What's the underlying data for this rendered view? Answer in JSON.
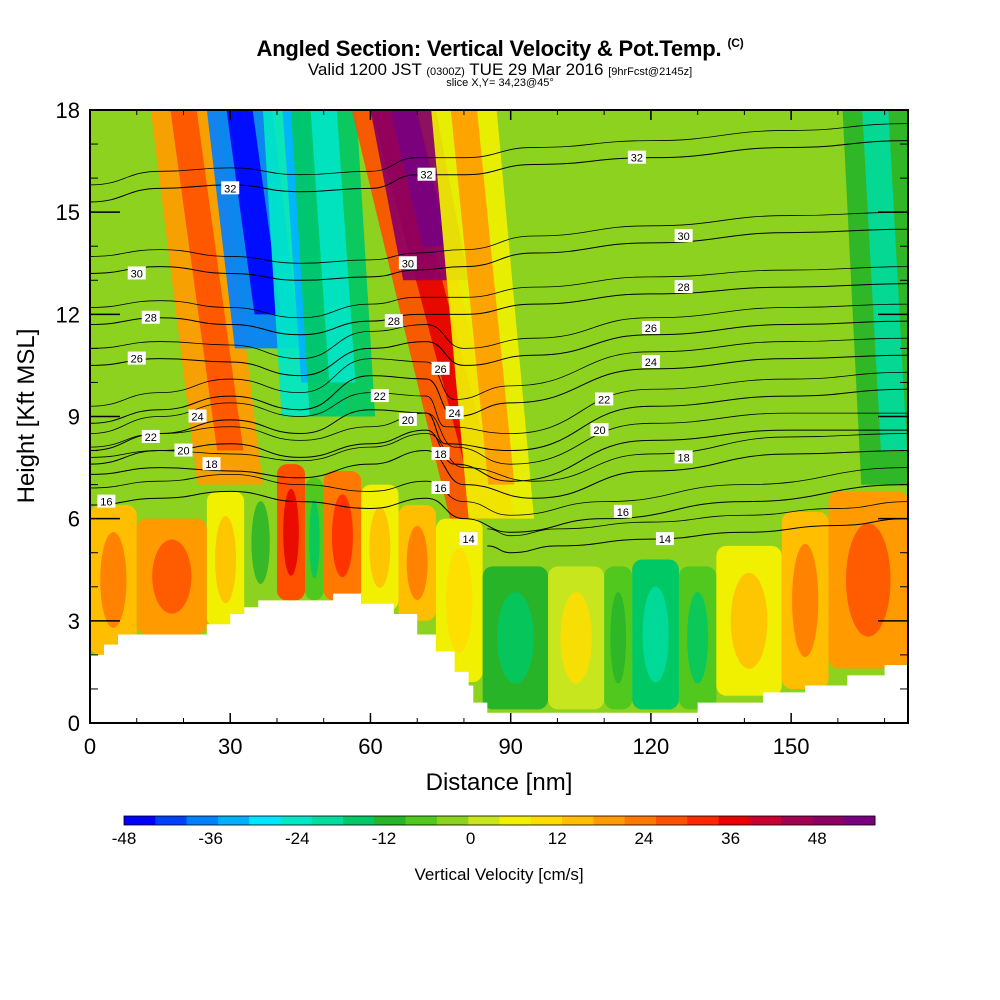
{
  "header": {
    "title": "Angled Section: Vertical Velocity & Pot.Temp.",
    "title_unit": "(C)",
    "valid_prefix": "Valid 1200 JST",
    "valid_zulu": "(0300Z)",
    "valid_date": "TUE 29 Mar 2016",
    "forecast_tag": "[9hrFcst@2145z]",
    "slice_info": "slice X,Y= 34,23@45°"
  },
  "chart_data": {
    "type": "heatmap",
    "xlabel": "Distance [nm]",
    "ylabel": "Height [Kft MSL]",
    "xlim": [
      0,
      175
    ],
    "ylim": [
      0,
      18
    ],
    "x_ticks": [
      0,
      30,
      60,
      90,
      120,
      150
    ],
    "y_ticks": [
      0,
      3,
      6,
      9,
      12,
      15,
      18
    ],
    "grid": false,
    "colorbar": {
      "label": "Vertical Velocity [cm/s]",
      "tick_labels": [
        -48,
        -36,
        -24,
        -12,
        0,
        12,
        24,
        36,
        48
      ],
      "colors": [
        "#0000ff",
        "#0040ff",
        "#0080ff",
        "#00b0ff",
        "#00e6ff",
        "#00e6c8",
        "#00dca0",
        "#00c864",
        "#28b428",
        "#50c81e",
        "#8cd21e",
        "#c8e61e",
        "#f0f000",
        "#ffdc00",
        "#ffbe00",
        "#ff9b00",
        "#ff7800",
        "#ff5000",
        "#ff2800",
        "#e60000",
        "#c80032",
        "#a00050",
        "#8c0064",
        "#780080"
      ]
    },
    "velocity_cells": [
      {
        "x": [
          0,
          10
        ],
        "y": [
          2,
          6.4
        ],
        "v": 14
      },
      {
        "x": [
          10,
          25
        ],
        "y": [
          2.6,
          6
        ],
        "v": 18
      },
      {
        "x": [
          25,
          33
        ],
        "y": [
          2.8,
          6.8
        ],
        "v": 6
      },
      {
        "x": [
          33,
          40
        ],
        "y": [
          3.4,
          7.2
        ],
        "v": -4
      },
      {
        "x": [
          40,
          46
        ],
        "y": [
          3.6,
          7.6
        ],
        "v": 28
      },
      {
        "x": [
          46,
          50
        ],
        "y": [
          3.6,
          7.2
        ],
        "v": -8
      },
      {
        "x": [
          50,
          58
        ],
        "y": [
          3.6,
          7.4
        ],
        "v": 24
      },
      {
        "x": [
          58,
          66
        ],
        "y": [
          3.3,
          7
        ],
        "v": 8
      },
      {
        "x": [
          66,
          74
        ],
        "y": [
          3.0,
          6.4
        ],
        "v": 14
      },
      {
        "x": [
          74,
          84
        ],
        "y": [
          1.2,
          6
        ],
        "v": 4
      },
      {
        "x": [
          84,
          98
        ],
        "y": [
          0.4,
          4.6
        ],
        "v": -10
      },
      {
        "x": [
          98,
          110
        ],
        "y": [
          0.4,
          4.6
        ],
        "v": 2
      },
      {
        "x": [
          110,
          116
        ],
        "y": [
          0.4,
          4.6
        ],
        "v": -6
      },
      {
        "x": [
          116,
          126
        ],
        "y": [
          0.4,
          4.8
        ],
        "v": -16
      },
      {
        "x": [
          126,
          134
        ],
        "y": [
          0.4,
          4.6
        ],
        "v": -8
      },
      {
        "x": [
          134,
          148
        ],
        "y": [
          0.8,
          5.2
        ],
        "v": 8
      },
      {
        "x": [
          148,
          158
        ],
        "y": [
          1.0,
          6.2
        ],
        "v": 14
      },
      {
        "x": [
          158,
          175
        ],
        "y": [
          1.6,
          6.8
        ],
        "v": 18
      }
    ],
    "velocity_bands": [
      {
        "x_bottom": 30,
        "x_top": 20,
        "y_bottom": 7,
        "y_top": 18,
        "v": 18
      },
      {
        "x_bottom": 38,
        "x_top": 32,
        "y_bottom": 11,
        "y_top": 18,
        "v": -38
      },
      {
        "x_bottom": 48,
        "x_top": 44,
        "y_bottom": 9,
        "y_top": 18,
        "v": -26
      },
      {
        "x_bottom": 54,
        "x_top": 50,
        "y_bottom": 9,
        "y_top": 18,
        "v": -16
      },
      {
        "x_bottom": 84,
        "x_top": 63,
        "y_bottom": 6,
        "y_top": 18,
        "v": 28
      },
      {
        "x_bottom": 74,
        "x_top": 67,
        "y_bottom": 13,
        "y_top": 18,
        "v": 48
      },
      {
        "x_bottom": 88,
        "x_top": 80,
        "y_bottom": 6,
        "y_top": 18,
        "v": 8
      },
      {
        "x_bottom": 172,
        "x_top": 168,
        "y_bottom": 7,
        "y_top": 18,
        "v": -10
      }
    ],
    "terrain_profile": {
      "x": [
        0,
        3,
        3,
        6,
        6,
        25,
        25,
        30,
        30,
        33,
        33,
        36,
        36,
        52,
        52,
        58,
        58,
        65,
        65,
        70,
        70,
        74,
        74,
        78,
        78,
        81,
        81,
        82,
        82,
        85,
        85,
        130,
        130,
        144,
        144,
        153,
        153,
        162,
        162,
        170,
        170,
        175
      ],
      "y": [
        2.0,
        2.0,
        2.3,
        2.3,
        2.6,
        2.6,
        2.9,
        2.9,
        3.2,
        3.2,
        3.4,
        3.4,
        3.6,
        3.6,
        3.8,
        3.8,
        3.5,
        3.5,
        3.2,
        3.2,
        2.6,
        2.6,
        2.1,
        2.1,
        1.5,
        1.5,
        1.1,
        1.1,
        0.6,
        0.6,
        0.3,
        0.3,
        0.6,
        0.6,
        0.9,
        0.9,
        1.1,
        1.1,
        1.4,
        1.4,
        1.7,
        1.7
      ]
    },
    "pot_temp_contours": [
      {
        "value": 14,
        "x": [
          85,
          90,
          100,
          120,
          140,
          160,
          175
        ],
        "y": [
          5.2,
          5.0,
          5.2,
          5.4,
          5.6,
          5.8,
          6.0
        ],
        "label_at": [
          81,
          5.4
        ]
      },
      {
        "value": 16,
        "x": [
          0,
          15,
          30,
          45,
          60,
          72,
          80,
          90,
          110,
          140,
          175
        ],
        "y": [
          6.4,
          6.6,
          6.8,
          6.5,
          6.3,
          6.6,
          6.0,
          5.6,
          6.0,
          6.5,
          7.0
        ],
        "label_at": [
          75,
          6.9
        ]
      },
      {
        "value": 18,
        "x": [
          0,
          15,
          30,
          45,
          60,
          72,
          80,
          95,
          120,
          150,
          175
        ],
        "y": [
          7.3,
          7.5,
          7.4,
          7.2,
          7.6,
          8.0,
          7.0,
          6.6,
          7.4,
          7.9,
          8.0
        ],
        "label_at": [
          26,
          7.6
        ]
      },
      {
        "value": 20,
        "x": [
          0,
          15,
          30,
          45,
          60,
          72,
          78,
          90,
          120,
          150,
          175
        ],
        "y": [
          7.6,
          8.0,
          8.2,
          7.8,
          8.2,
          8.6,
          7.6,
          7.1,
          8.3,
          8.6,
          8.6
        ],
        "label_at": [
          109,
          8.6
        ]
      },
      {
        "value": 22,
        "x": [
          0,
          15,
          30,
          45,
          60,
          72,
          76,
          90,
          120,
          150,
          175
        ],
        "y": [
          8.0,
          8.5,
          8.9,
          8.5,
          9.2,
          9.1,
          8.2,
          8.0,
          9.3,
          9.6,
          9.8
        ],
        "label_at": [
          110,
          9.5
        ]
      },
      {
        "value": 24,
        "x": [
          0,
          15,
          30,
          45,
          60,
          72,
          78,
          90,
          120,
          150,
          175
        ],
        "y": [
          8.8,
          9.2,
          9.6,
          9.2,
          10.2,
          10.1,
          9.0,
          9.4,
          10.4,
          10.7,
          10.8
        ],
        "label_at": [
          120,
          10.6
        ]
      },
      {
        "value": 26,
        "x": [
          0,
          15,
          30,
          45,
          60,
          72,
          80,
          95,
          120,
          150,
          175
        ],
        "y": [
          10.5,
          10.7,
          10.6,
          10.2,
          11.0,
          11.2,
          10.5,
          10.8,
          11.4,
          11.7,
          11.8
        ],
        "label_at": [
          120,
          11.6
        ]
      },
      {
        "value": 28,
        "x": [
          0,
          15,
          30,
          45,
          60,
          70,
          80,
          95,
          120,
          150,
          175
        ],
        "y": [
          11.7,
          11.9,
          11.7,
          11.4,
          11.8,
          12.0,
          12.0,
          12.3,
          12.6,
          12.8,
          12.9
        ],
        "label_at": [
          127,
          12.8
        ]
      },
      {
        "value": 30,
        "x": [
          0,
          15,
          30,
          45,
          60,
          70,
          80,
          95,
          120,
          150,
          175
        ],
        "y": [
          13.2,
          13.4,
          13.2,
          13.0,
          13.1,
          13.3,
          13.4,
          13.8,
          14.1,
          14.4,
          14.5
        ],
        "label_at": [
          127,
          14.3
        ]
      },
      {
        "value": 32,
        "x": [
          0,
          15,
          30,
          45,
          60,
          70,
          80,
          95,
          120,
          150,
          175
        ],
        "y": [
          15.3,
          15.7,
          15.8,
          15.6,
          15.7,
          16.1,
          16.1,
          16.4,
          16.6,
          16.9,
          17.1
        ],
        "label_at": [
          117,
          16.6
        ]
      }
    ],
    "extra_contour_labels": [
      {
        "text": "16",
        "x": 3.5,
        "y": 6.5
      },
      {
        "text": "22",
        "x": 13,
        "y": 8.4
      },
      {
        "text": "20",
        "x": 20,
        "y": 8.0
      },
      {
        "text": "24",
        "x": 23,
        "y": 9.0
      },
      {
        "text": "26",
        "x": 10,
        "y": 10.7
      },
      {
        "text": "28",
        "x": 13,
        "y": 11.9
      },
      {
        "text": "30",
        "x": 10,
        "y": 13.2
      },
      {
        "text": "32",
        "x": 30,
        "y": 15.7
      },
      {
        "text": "22",
        "x": 62,
        "y": 9.6
      },
      {
        "text": "20",
        "x": 68,
        "y": 8.9
      },
      {
        "text": "18",
        "x": 75,
        "y": 7.9
      },
      {
        "text": "24",
        "x": 78,
        "y": 9.1
      },
      {
        "text": "26",
        "x": 75,
        "y": 10.4
      },
      {
        "text": "28",
        "x": 65,
        "y": 11.8
      },
      {
        "text": "30",
        "x": 68,
        "y": 13.5
      },
      {
        "text": "32",
        "x": 72,
        "y": 16.1
      },
      {
        "text": "16",
        "x": 114,
        "y": 6.2
      },
      {
        "text": "14",
        "x": 123,
        "y": 5.4
      },
      {
        "text": "18",
        "x": 127,
        "y": 7.8
      },
      {
        "text": "22",
        "x": 110,
        "y": 9.5
      }
    ]
  }
}
